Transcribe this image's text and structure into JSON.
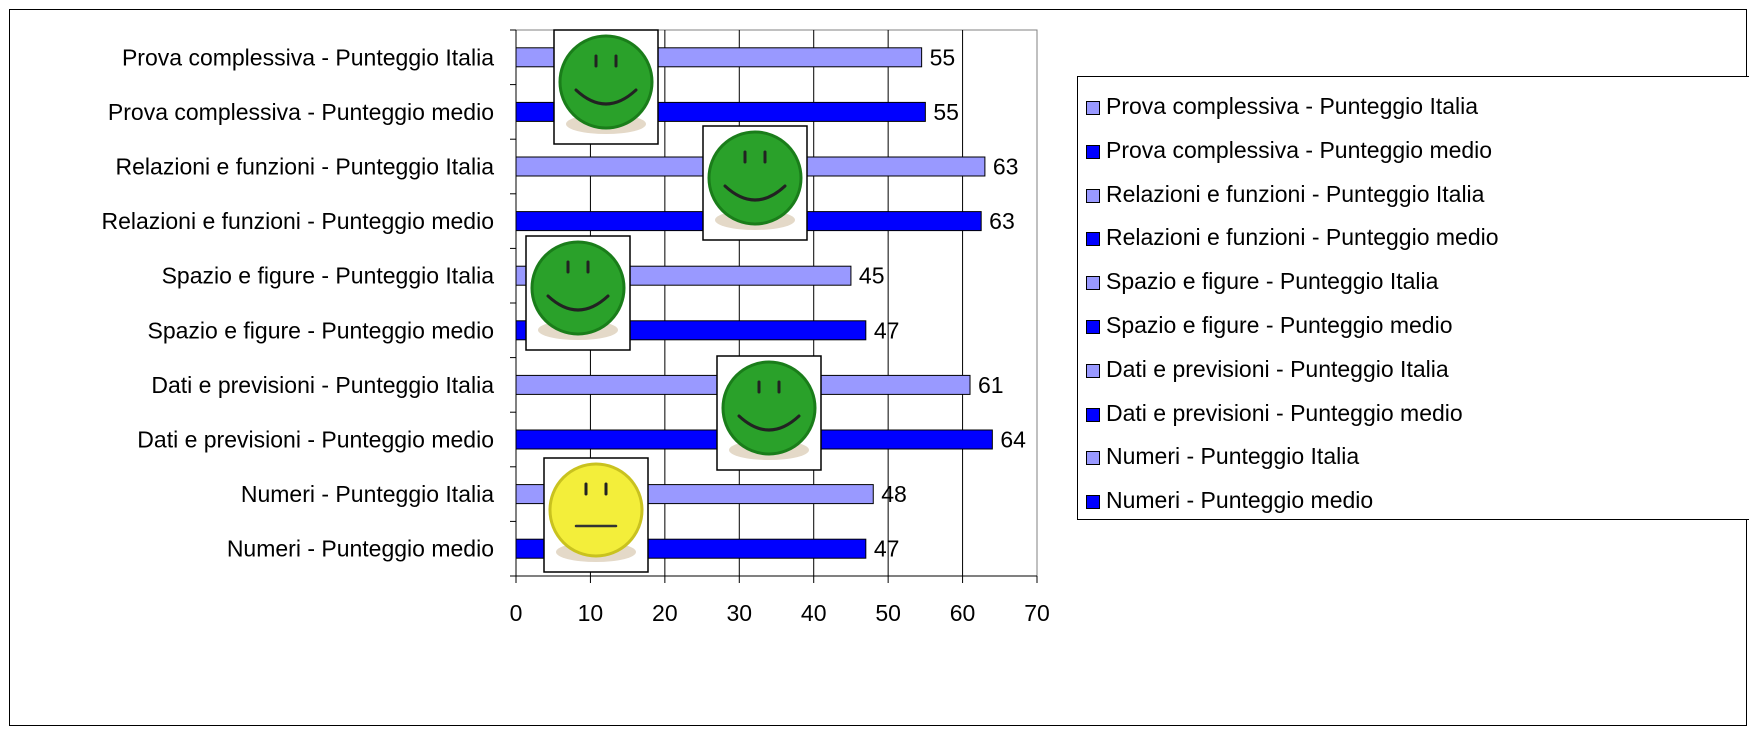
{
  "chart_data": {
    "type": "bar",
    "orientation": "horizontal",
    "categories": [
      "Prova complessiva - Punteggio Italia",
      "Prova complessiva - Punteggio medio",
      "Relazioni e funzioni - Punteggio Italia",
      "Relazioni e funzioni - Punteggio medio",
      "Spazio e figure - Punteggio Italia",
      "Spazio e figure - Punteggio medio",
      "Dati e previsioni - Punteggio Italia",
      "Dati e previsioni - Punteggio medio",
      "Numeri - Punteggio Italia",
      "Numeri - Punteggio medio"
    ],
    "values": [
      54.5,
      55,
      63,
      62.5,
      45,
      47,
      61,
      64,
      48,
      47
    ],
    "data_labels": [
      "55",
      "55",
      "63",
      "63",
      "45",
      "47",
      "61",
      "64",
      "48",
      "47"
    ],
    "bar_colors": [
      "#9999ff",
      "#0000ff",
      "#9999ff",
      "#0000ff",
      "#9999ff",
      "#0000ff",
      "#9999ff",
      "#0000ff",
      "#9999ff",
      "#0000ff"
    ],
    "xlim": [
      0,
      70
    ],
    "x_ticks": [
      "0",
      "10",
      "20",
      "30",
      "40",
      "50",
      "60",
      "70"
    ],
    "grid": "vertical",
    "legend": {
      "position": "right",
      "items": [
        {
          "label": "Prova complessiva - Punteggio Italia",
          "color": "#9999ff"
        },
        {
          "label": "Prova complessiva - Punteggio medio",
          "color": "#0000ff"
        },
        {
          "label": "Relazioni e funzioni - Punteggio Italia",
          "color": "#9999ff"
        },
        {
          "label": "Relazioni e funzioni - Punteggio medio",
          "color": "#0000ff"
        },
        {
          "label": "Spazio e figure - Punteggio Italia",
          "color": "#9999ff"
        },
        {
          "label": "Spazio e figure - Punteggio medio",
          "color": "#0000ff"
        },
        {
          "label": "Dati e previsioni - Punteggio Italia",
          "color": "#9999ff"
        },
        {
          "label": "Dati e previsioni - Punteggio medio",
          "color": "#0000ff"
        },
        {
          "label": "Numeri - Punteggio Italia",
          "color": "#9999ff"
        },
        {
          "label": "Numeri - Punteggio medio",
          "color": "#0000ff"
        }
      ]
    },
    "smileys": [
      {
        "group": "Prova complessiva",
        "face": "happy",
        "color": "green"
      },
      {
        "group": "Relazioni e funzioni",
        "face": "happy",
        "color": "green"
      },
      {
        "group": "Spazio e figure",
        "face": "happy",
        "color": "green"
      },
      {
        "group": "Dati e previsioni",
        "face": "happy",
        "color": "green"
      },
      {
        "group": "Numeri",
        "face": "neutral",
        "color": "yellow"
      }
    ]
  }
}
